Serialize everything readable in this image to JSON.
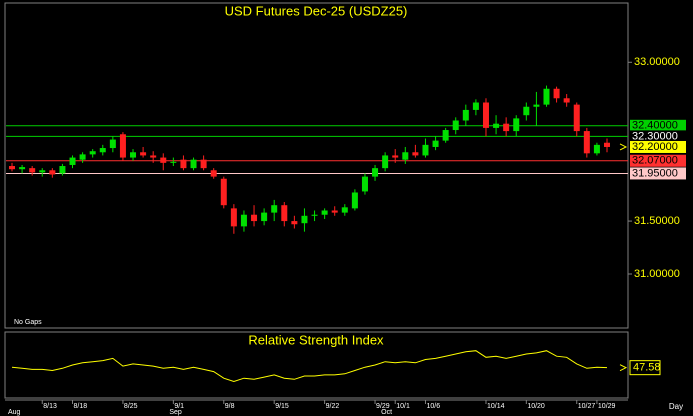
{
  "chart_data": [
    {
      "type": "candlestick",
      "title": "USD Futures Dec-25 (USDZ25)",
      "note": "No Gaps",
      "x_unit": "Day",
      "categories": [
        null,
        null,
        null,
        "8/13",
        null,
        null,
        "8/18",
        null,
        null,
        null,
        null,
        "8/25",
        null,
        null,
        null,
        null,
        "9/1",
        null,
        null,
        null,
        null,
        "9/8",
        null,
        null,
        null,
        null,
        "9/15",
        null,
        null,
        null,
        null,
        "9/22",
        null,
        null,
        null,
        null,
        "9/29",
        null,
        "10/1",
        null,
        null,
        "10/6",
        null,
        null,
        null,
        null,
        null,
        "10/14",
        null,
        null,
        null,
        "10/20",
        null,
        null,
        null,
        null,
        "10/27",
        null,
        "10/29",
        null
      ],
      "months": [
        "Aug",
        null,
        null,
        null,
        null,
        null,
        null,
        null,
        null,
        null,
        null,
        null,
        null,
        null,
        null,
        null,
        "Sep",
        null,
        null,
        null,
        null,
        null,
        null,
        null,
        null,
        null,
        null,
        null,
        null,
        null,
        null,
        null,
        null,
        null,
        null,
        null,
        null,
        "Oct",
        null,
        null,
        null,
        null,
        null,
        null,
        null,
        null,
        null,
        null,
        null,
        null,
        null,
        null,
        null,
        null,
        null,
        null,
        null,
        null,
        null,
        null
      ],
      "open": [
        32.02,
        31.99,
        32.0,
        31.96,
        31.98,
        31.95,
        32.03,
        32.08,
        32.13,
        32.15,
        32.19,
        32.32,
        32.1,
        32.15,
        32.12,
        32.1,
        32.05,
        32.08,
        32.0,
        32.08,
        31.98,
        31.9,
        31.62,
        31.45,
        31.56,
        31.5,
        31.58,
        31.65,
        31.5,
        31.48,
        31.55,
        31.56,
        31.6,
        31.58,
        31.62,
        31.78,
        31.92,
        32.0,
        32.12,
        32.08,
        32.15,
        32.12,
        32.2,
        32.26,
        32.36,
        32.45,
        32.55,
        32.62,
        32.38,
        32.42,
        32.35,
        32.5,
        32.58,
        32.6,
        32.75,
        32.66,
        32.6,
        32.35,
        32.14,
        32.24
      ],
      "high": [
        32.05,
        32.03,
        32.02,
        32.0,
        32.0,
        32.04,
        32.12,
        32.15,
        32.18,
        32.22,
        32.3,
        32.34,
        32.18,
        32.2,
        32.16,
        32.14,
        32.1,
        32.12,
        32.1,
        32.12,
        32.0,
        31.92,
        31.66,
        31.6,
        31.65,
        31.62,
        31.7,
        31.68,
        31.55,
        31.62,
        31.6,
        31.62,
        31.64,
        31.66,
        31.8,
        31.95,
        32.03,
        32.15,
        32.18,
        32.2,
        32.22,
        32.28,
        32.3,
        32.38,
        32.48,
        32.6,
        32.65,
        32.66,
        32.5,
        32.48,
        32.5,
        32.62,
        32.72,
        32.78,
        32.77,
        32.7,
        32.62,
        32.38,
        32.24,
        32.28
      ],
      "low": [
        31.97,
        31.95,
        31.93,
        31.92,
        31.91,
        31.93,
        32.0,
        32.05,
        32.1,
        32.12,
        32.15,
        32.07,
        32.07,
        32.1,
        32.05,
        31.98,
        32.02,
        31.98,
        31.98,
        31.98,
        31.9,
        31.62,
        31.38,
        31.4,
        31.45,
        31.46,
        31.5,
        31.45,
        31.43,
        31.4,
        31.5,
        31.52,
        31.55,
        31.55,
        31.6,
        31.75,
        31.88,
        31.97,
        32.05,
        32.04,
        32.1,
        32.1,
        32.17,
        32.24,
        32.32,
        32.4,
        32.5,
        32.3,
        32.32,
        32.3,
        32.3,
        32.45,
        32.4,
        32.58,
        32.62,
        32.58,
        32.3,
        32.1,
        32.12,
        32.15
      ],
      "close": [
        31.99,
        32.01,
        31.96,
        31.98,
        31.94,
        32.02,
        32.1,
        32.13,
        32.16,
        32.19,
        32.27,
        32.1,
        32.15,
        32.12,
        32.1,
        32.05,
        32.06,
        32.0,
        32.08,
        32.0,
        31.92,
        31.65,
        31.45,
        31.56,
        31.5,
        31.58,
        31.65,
        31.5,
        31.47,
        31.55,
        31.56,
        31.6,
        31.58,
        31.63,
        31.77,
        31.92,
        32.0,
        32.12,
        32.1,
        32.15,
        32.12,
        32.22,
        32.26,
        32.36,
        32.45,
        32.55,
        32.62,
        32.38,
        32.42,
        32.35,
        32.47,
        32.58,
        32.6,
        32.75,
        32.66,
        32.62,
        32.35,
        32.14,
        32.22,
        32.2
      ],
      "up_color": "#00e000",
      "down_color": "#ff2020",
      "ylim": [
        30.49,
        33.56
      ],
      "yticks": [
        {
          "value": 31.0,
          "label": "31.00000"
        },
        {
          "value": 31.5,
          "label": "31.50000"
        },
        {
          "value": 33.0,
          "label": "33.00000"
        }
      ],
      "levels": [
        {
          "value": 32.4,
          "label": "32.40000",
          "color": "#00d000",
          "label_bg": "#00d000",
          "text_color": "#000000",
          "line": true
        },
        {
          "value": 32.3,
          "label": "32.30000",
          "color": "#00d000",
          "label_bg": "#000000",
          "text_color": "#ffffff",
          "line": true
        },
        {
          "value": 32.2,
          "label": "32.20000",
          "color": "#ffff00",
          "label_bg": "#ffff00",
          "text_color": "#000000",
          "line": false
        },
        {
          "value": 32.07,
          "label": "32.07000",
          "color": "#ff3030",
          "label_bg": "#ff3030",
          "text_color": "#000000",
          "line": true
        },
        {
          "value": 31.95,
          "label": "31.95000",
          "color": "#ffc8c8",
          "label_bg": "#ffc8c8",
          "text_color": "#000000",
          "line": true
        }
      ]
    },
    {
      "type": "line",
      "title": "Relative Strength Index",
      "color": "#ffff00",
      "values": [
        48,
        47,
        46,
        46,
        45,
        47,
        50,
        52,
        53,
        54,
        56,
        49,
        51,
        50,
        49,
        47,
        48,
        46,
        48,
        46,
        44,
        38,
        35,
        38,
        37,
        39,
        41,
        38,
        37,
        40,
        40,
        41,
        41,
        42,
        45,
        48,
        50,
        53,
        52,
        53,
        52,
        55,
        56,
        58,
        60,
        62,
        63,
        57,
        58,
        56,
        58,
        60,
        61,
        63,
        58,
        57,
        51,
        47,
        48,
        47.58
      ],
      "ylim": [
        20,
        80
      ]
    }
  ]
}
